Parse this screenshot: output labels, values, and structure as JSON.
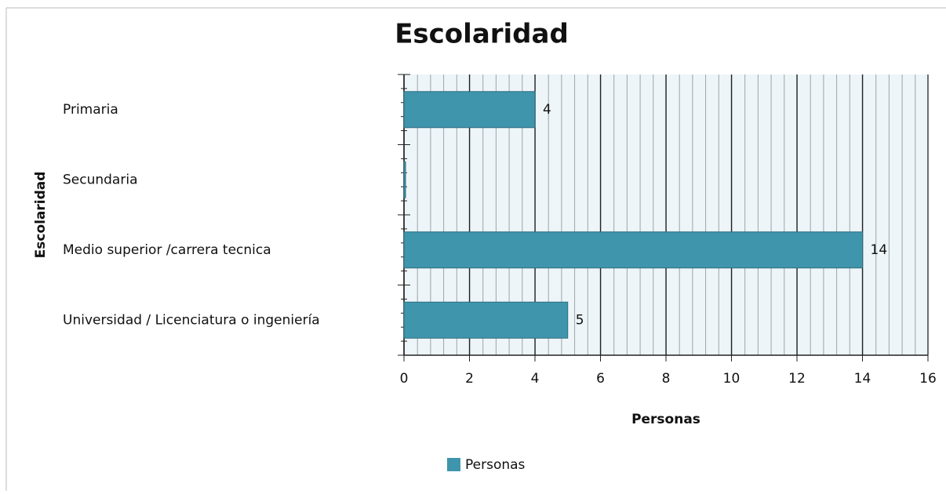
{
  "chart_data": {
    "type": "bar",
    "orientation": "horizontal",
    "title": "Escolaridad",
    "categories": [
      "Primaria",
      "Secundaria",
      "Medio superior /carrera tecnica",
      "Universidad / Licenciatura o ingeniería"
    ],
    "series": [
      {
        "name": "Personas",
        "color": "#3f95ab",
        "values": [
          4,
          0,
          14,
          5
        ]
      }
    ],
    "xlabel": "Personas",
    "ylabel": "Escolaridad",
    "xlim": [
      0,
      16
    ],
    "xticks": [
      0,
      2,
      4,
      6,
      8,
      10,
      12,
      14,
      16
    ],
    "grid": true,
    "legend": "bottom"
  }
}
